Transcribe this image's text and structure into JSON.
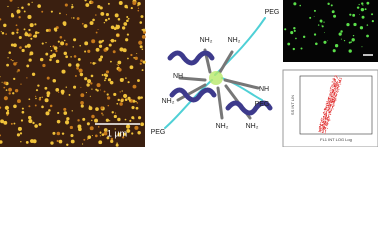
{
  "afm": {
    "scale_bar": "1 µm"
  },
  "diagram": {
    "labels": [
      "PEG",
      "NH₂",
      "NH₂",
      "NH",
      "NH₂",
      "NH",
      "PEG",
      "NH₂",
      "NH₂",
      "PEG"
    ]
  },
  "flow_plot": {
    "y_label": "SS INT LIN",
    "x_label": "FL1 INT LOG Log"
  }
}
